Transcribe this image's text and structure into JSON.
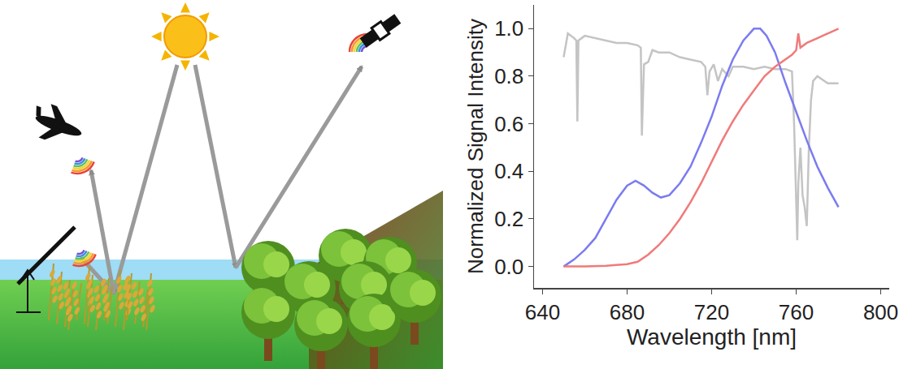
{
  "chart_data": {
    "type": "line",
    "xlabel": "Wavelength [nm]",
    "ylabel": "Normalized Signal Intensity",
    "xlim": [
      636,
      804
    ],
    "xticks": [
      640,
      680,
      720,
      760,
      800
    ],
    "ylim": [
      -0.09,
      1.1
    ],
    "yticks": [
      {
        "value": 0,
        "label": "0.0"
      },
      0.2,
      0.4,
      0.6,
      0.8,
      {
        "value": 1,
        "label": "1.0"
      }
    ],
    "grid": false,
    "series": [
      {
        "color": "#c4c4c4",
        "x": [
          650,
          652,
          655,
          656,
          656.5,
          657,
          660,
          665,
          670,
          675,
          680,
          685,
          686.5,
          687,
          688,
          690,
          692,
          695,
          700,
          705,
          710,
          715,
          717,
          718,
          719,
          721,
          723,
          725,
          728,
          730,
          735,
          740,
          745,
          750,
          755,
          758,
          759,
          760,
          760.5,
          761,
          762,
          763,
          764,
          765,
          766,
          767,
          768,
          770,
          775,
          780
        ],
        "values": [
          0.88,
          0.98,
          0.96,
          0.95,
          0.61,
          0.95,
          0.97,
          0.96,
          0.95,
          0.94,
          0.94,
          0.93,
          0.92,
          0.55,
          0.85,
          0.86,
          0.91,
          0.9,
          0.9,
          0.88,
          0.87,
          0.86,
          0.84,
          0.72,
          0.82,
          0.85,
          0.78,
          0.83,
          0.8,
          0.84,
          0.84,
          0.83,
          0.84,
          0.83,
          0.83,
          0.82,
          0.6,
          0.2,
          0.11,
          0.35,
          0.5,
          0.3,
          0.25,
          0.17,
          0.5,
          0.7,
          0.78,
          0.8,
          0.77,
          0.77
        ]
      },
      {
        "color": "#7b7bf2",
        "x": [
          650,
          655,
          660,
          665,
          670,
          675,
          680,
          684,
          688,
          692,
          696,
          700,
          705,
          710,
          715,
          720,
          725,
          730,
          735,
          740,
          743,
          746,
          750,
          755,
          760,
          765,
          770,
          775,
          780
        ],
        "values": [
          0,
          0.03,
          0.07,
          0.12,
          0.2,
          0.28,
          0.34,
          0.36,
          0.34,
          0.31,
          0.29,
          0.3,
          0.35,
          0.42,
          0.52,
          0.63,
          0.76,
          0.87,
          0.95,
          1.0,
          1.0,
          0.97,
          0.9,
          0.77,
          0.65,
          0.53,
          0.42,
          0.33,
          0.25
        ]
      },
      {
        "color": "#f07a7a",
        "x": [
          650,
          660,
          670,
          680,
          685,
          690,
          695,
          700,
          705,
          710,
          715,
          720,
          725,
          730,
          735,
          740,
          745,
          750,
          755,
          758,
          760,
          761,
          762,
          765,
          770,
          775,
          780
        ],
        "values": [
          0,
          0,
          0.003,
          0.01,
          0.02,
          0.05,
          0.09,
          0.14,
          0.2,
          0.27,
          0.35,
          0.44,
          0.53,
          0.61,
          0.68,
          0.74,
          0.8,
          0.84,
          0.87,
          0.89,
          0.91,
          0.98,
          0.92,
          0.94,
          0.96,
          0.98,
          1.0
        ]
      }
    ]
  }
}
